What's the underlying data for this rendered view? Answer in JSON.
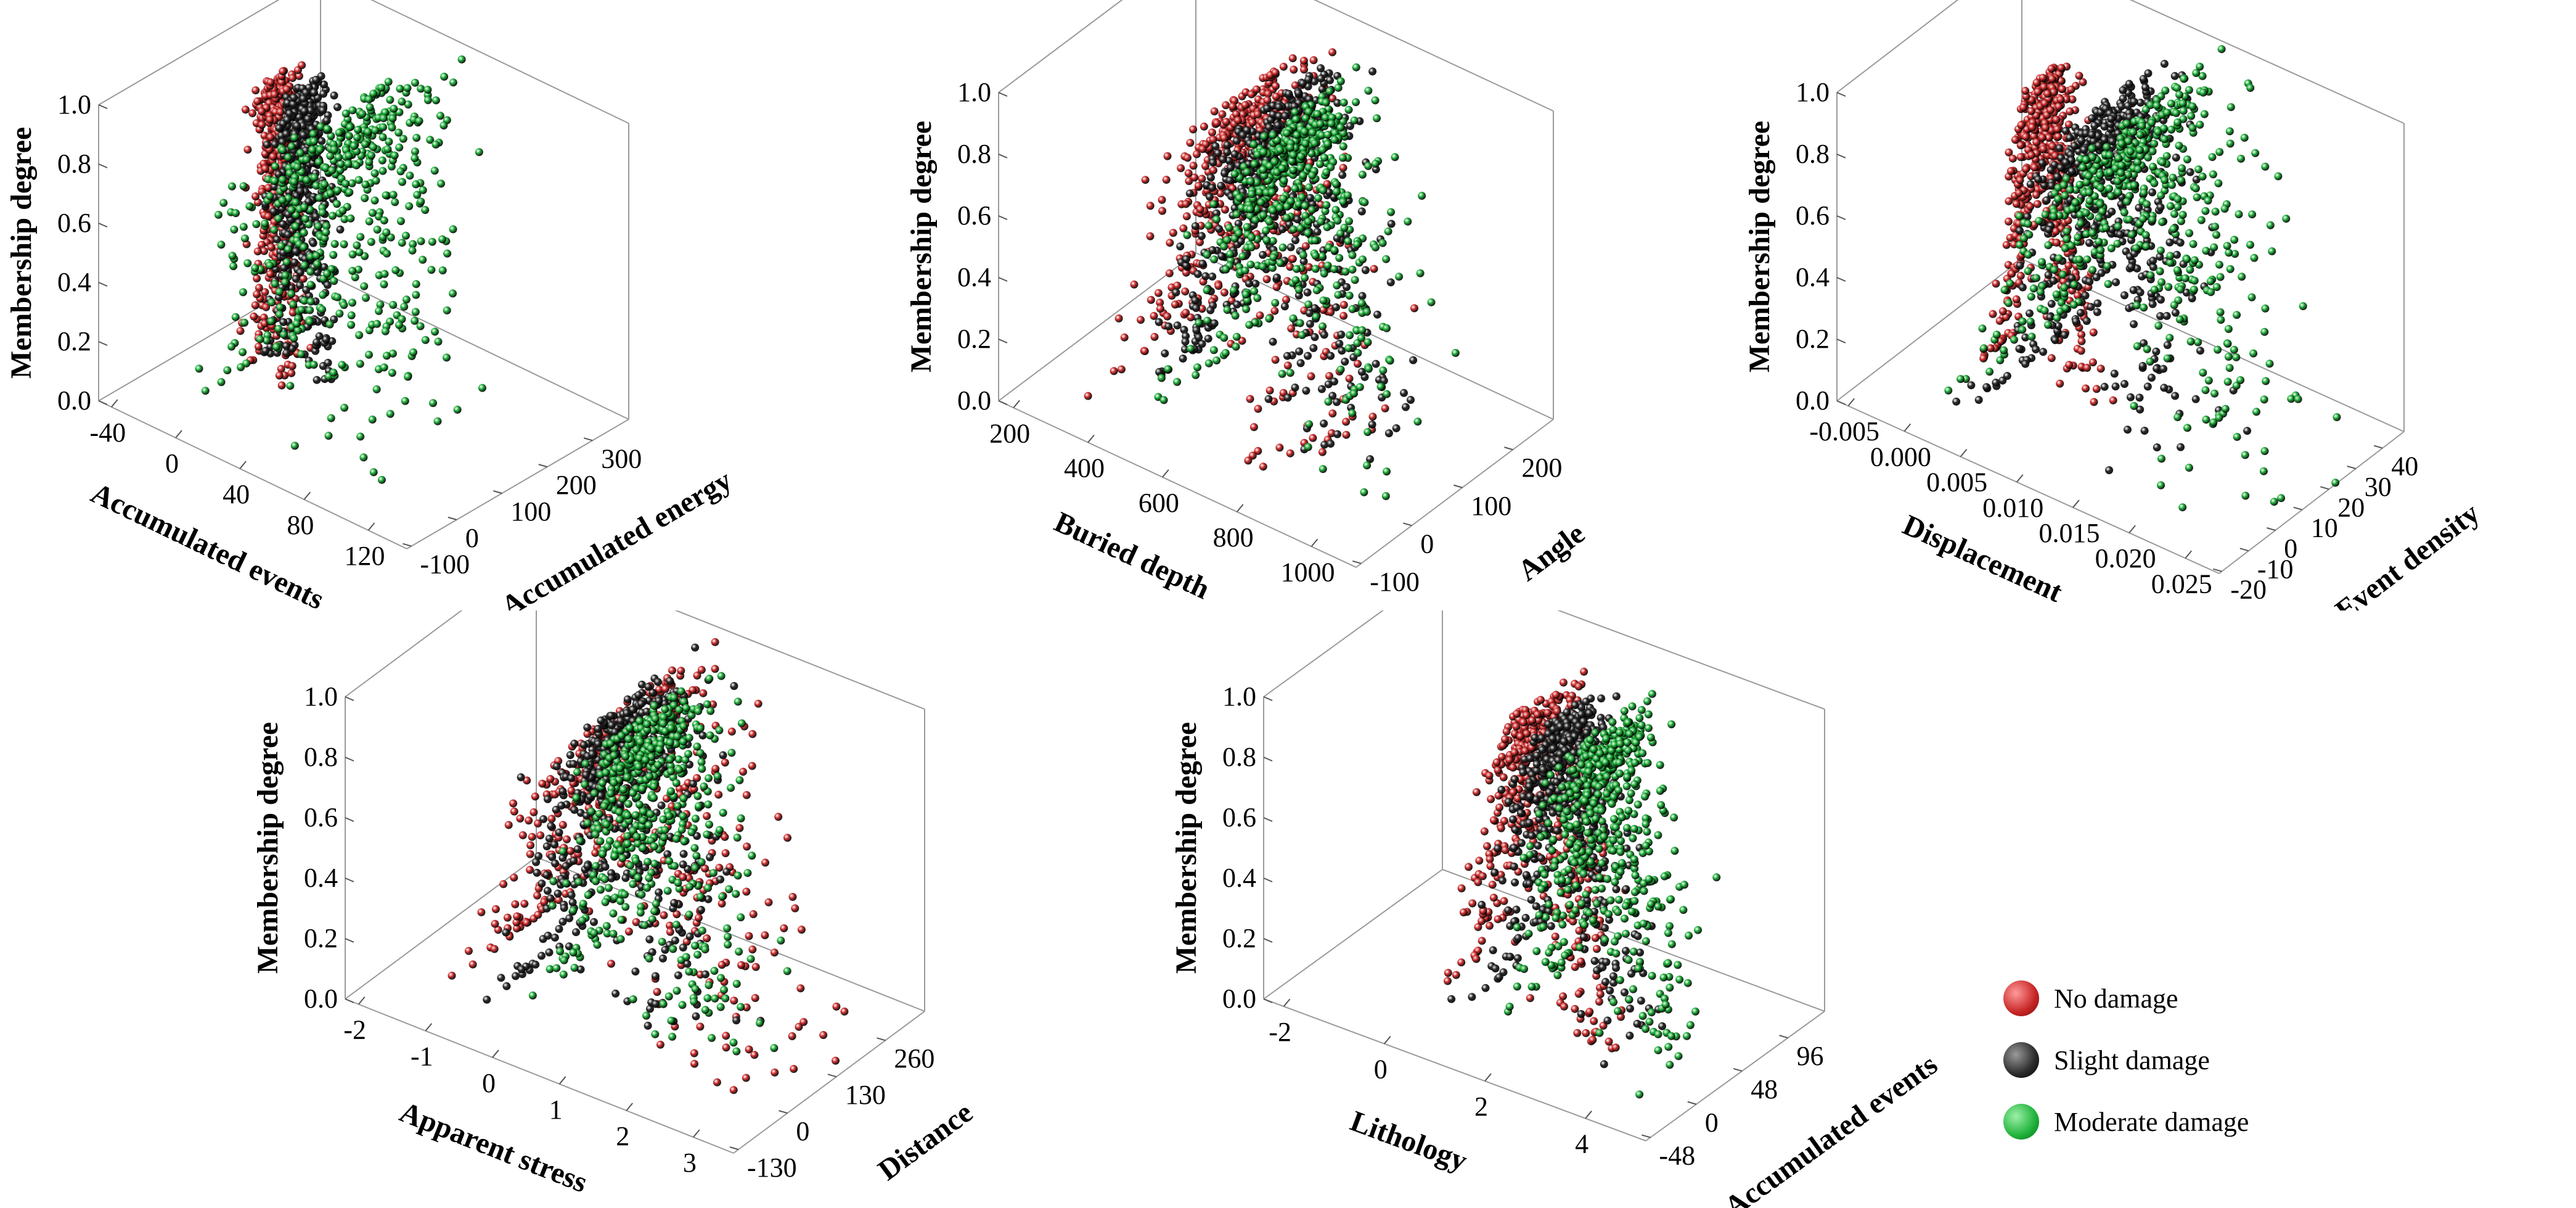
{
  "colors": {
    "no_damage": "#d22e2e",
    "slight_damage": "#2a2a2a",
    "moderate_damage": "#1fb23a"
  },
  "legend": {
    "items": [
      {
        "label": "No damage",
        "color": "#d22e2e"
      },
      {
        "label": "Slight damage",
        "color": "#2a2a2a"
      },
      {
        "label": "Moderate damage",
        "color": "#1fb23a"
      }
    ]
  },
  "chart_data": [
    {
      "type": "scatter3d",
      "zlabel": "Membership degree",
      "ztick_labels": [
        "0.0",
        "0.2",
        "0.4",
        "0.6",
        "0.8",
        "1.0"
      ],
      "xlabel": "Accumulated events",
      "xtick_labels": [
        "-40",
        "0",
        "40",
        "80",
        "120"
      ],
      "ylabel": "Accumulated energy",
      "ytick_labels": [
        "-100",
        "0",
        "100",
        "200",
        "300"
      ],
      "series": [
        {
          "name": "No damage",
          "center": 0.22,
          "width": 0.02,
          "spread": 0.08
        },
        {
          "name": "Slight damage",
          "center": 0.3,
          "width": 0.03,
          "spread": 0.1
        },
        {
          "name": "Moderate damage",
          "center": 0.45,
          "width": 0.1,
          "spread": 0.4
        }
      ]
    },
    {
      "type": "scatter3d",
      "zlabel": "Membership degree",
      "ztick_labels": [
        "0.0",
        "0.2",
        "0.4",
        "0.6",
        "0.8",
        "1.0"
      ],
      "xlabel": "Buried depth",
      "xtick_labels": [
        "200",
        "400",
        "600",
        "800",
        "1000"
      ],
      "ylabel": "Angle",
      "ytick_labels": [
        "-100",
        "0",
        "100",
        "200"
      ],
      "series": [
        {
          "name": "No damage",
          "center": 0.42,
          "width": 0.1,
          "spread": 0.3
        },
        {
          "name": "Slight damage",
          "center": 0.5,
          "width": 0.1,
          "spread": 0.3
        },
        {
          "name": "Moderate damage",
          "center": 0.56,
          "width": 0.1,
          "spread": 0.3
        }
      ]
    },
    {
      "type": "scatter3d",
      "zlabel": "Membership degree",
      "ztick_labels": [
        "0.0",
        "0.2",
        "0.4",
        "0.6",
        "0.8",
        "1.0"
      ],
      "xlabel": "Displacement",
      "xtick_labels": [
        "-0.005",
        "0.000",
        "0.005",
        "0.010",
        "0.015",
        "0.020",
        "0.025"
      ],
      "ylabel": "Event density",
      "ytick_labels": [
        "-20",
        "-10",
        "0",
        "10",
        "20",
        "30",
        "40"
      ],
      "series": [
        {
          "name": "No damage",
          "center": 0.3,
          "width": 0.05,
          "spread": 0.12
        },
        {
          "name": "Slight damage",
          "center": 0.46,
          "width": 0.08,
          "spread": 0.3
        },
        {
          "name": "Moderate damage",
          "center": 0.55,
          "width": 0.14,
          "spread": 0.45
        }
      ]
    },
    {
      "type": "scatter3d",
      "zlabel": "Membership degree",
      "ztick_labels": [
        "0.0",
        "0.2",
        "0.4",
        "0.6",
        "0.8",
        "1.0"
      ],
      "xlabel": "Apparent stress",
      "xtick_labels": [
        "-2",
        "-1",
        "0",
        "1",
        "2",
        "3"
      ],
      "ylabel": "Distance",
      "ytick_labels": [
        "-130",
        "0",
        "130",
        "260"
      ],
      "series": [
        {
          "name": "No damage",
          "center": 0.5,
          "width": 0.14,
          "spread": 0.4
        },
        {
          "name": "Slight damage",
          "center": 0.47,
          "width": 0.08,
          "spread": 0.3
        },
        {
          "name": "Moderate damage",
          "center": 0.54,
          "width": 0.08,
          "spread": 0.3
        }
      ]
    },
    {
      "type": "scatter3d",
      "zlabel": "Membership degree",
      "ztick_labels": [
        "0.0",
        "0.2",
        "0.4",
        "0.6",
        "0.8",
        "1.0"
      ],
      "xlabel": "Lithology",
      "xtick_labels": [
        "-2",
        "0",
        "2",
        "4"
      ],
      "ylabel": "Accumulated events",
      "ytick_labels": [
        "-48",
        "0",
        "48",
        "96"
      ],
      "series": [
        {
          "name": "No damage",
          "center": 0.48,
          "width": 0.07,
          "spread": 0.2
        },
        {
          "name": "Slight damage",
          "center": 0.56,
          "width": 0.07,
          "spread": 0.2
        },
        {
          "name": "Moderate damage",
          "center": 0.66,
          "width": 0.07,
          "spread": 0.25
        }
      ]
    }
  ]
}
